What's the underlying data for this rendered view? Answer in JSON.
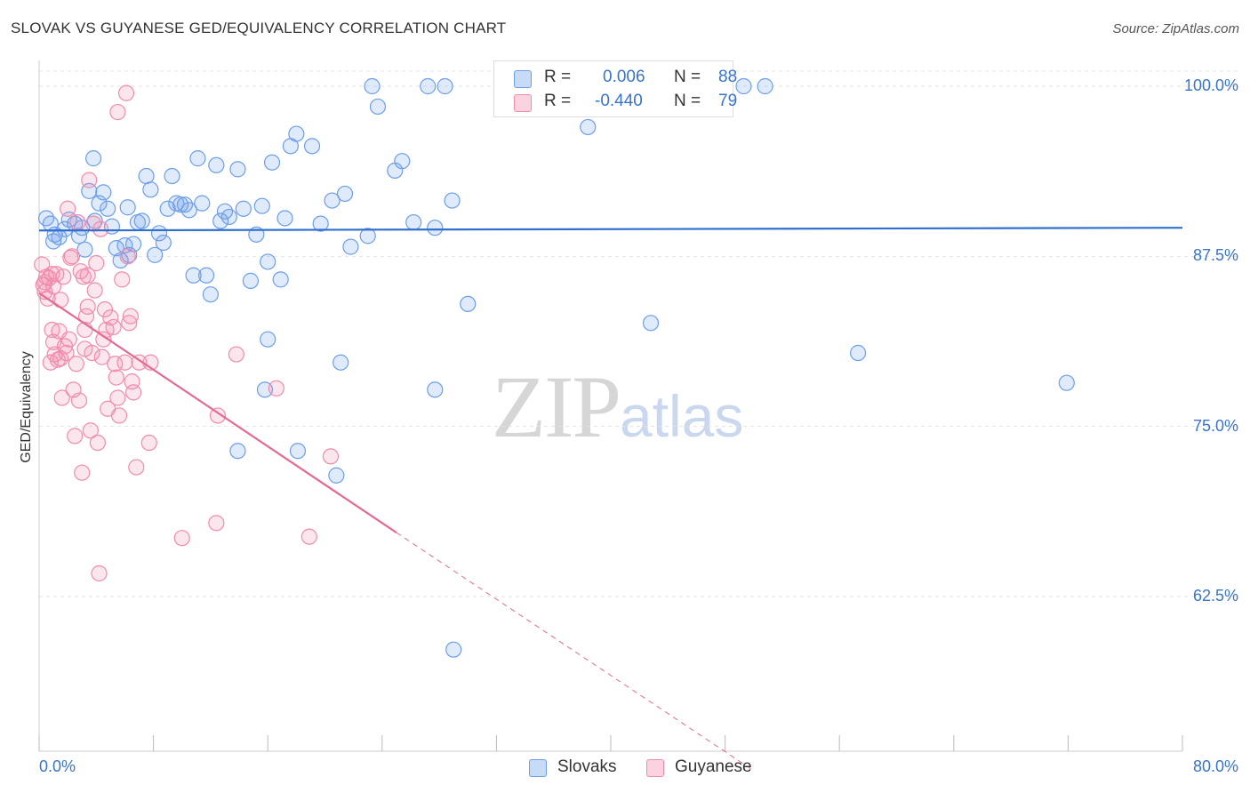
{
  "header": {
    "title": "SLOVAK VS GUYANESE GED/EQUIVALENCY CORRELATION CHART",
    "source": "Source: ZipAtlas.com"
  },
  "watermark": {
    "zip": "ZIP",
    "atlas": "atlas"
  },
  "legend": {
    "rows": [
      {
        "r_label": "R =",
        "r_value": "0.006",
        "n_label": "N =",
        "n_value": "88",
        "color": "#6d9ee8"
      },
      {
        "r_label": "R =",
        "r_value": "-0.440",
        "n_label": "N =",
        "n_value": "79",
        "color": "#f08cab"
      }
    ]
  },
  "bottom_legend": [
    {
      "label": "Slovaks",
      "color": "#6d9ee8"
    },
    {
      "label": "Guyanese",
      "color": "#f08cab"
    }
  ],
  "chart_data": {
    "type": "scatter",
    "title": "SLOVAK VS GUYANESE GED/EQUIVALENCY CORRELATION CHART",
    "xlabel": "",
    "ylabel": "GED/Equivalency",
    "xlim": [
      0,
      80
    ],
    "ylim": [
      50,
      102
    ],
    "x_ticks_labels": [
      "0.0%",
      "80.0%"
    ],
    "y_ticks": [
      62.5,
      75.0,
      87.5,
      100.0
    ],
    "y_ticks_labels": [
      "62.5%",
      "75.0%",
      "87.5%",
      "100.0%"
    ],
    "grid": true,
    "legend_position": "top-center",
    "series": [
      {
        "name": "Slovaks",
        "color": "#6d9ee8",
        "r": 0.006,
        "n": 88,
        "trend": {
          "x": [
            0,
            80
          ],
          "y": [
            89.4,
            89.6
          ],
          "dashed_from": null
        },
        "points": [
          [
            0.5,
            90.3
          ],
          [
            0.8,
            89.9
          ],
          [
            1.1,
            89.1
          ],
          [
            1.4,
            88.9
          ],
          [
            1.8,
            89.5
          ],
          [
            2.1,
            90.2
          ],
          [
            2.5,
            89.9
          ],
          [
            2.8,
            89.0
          ],
          [
            3.0,
            89.6
          ],
          [
            3.2,
            88.0
          ],
          [
            3.5,
            92.3
          ],
          [
            3.9,
            90.1
          ],
          [
            4.2,
            91.4
          ],
          [
            4.5,
            92.2
          ],
          [
            4.8,
            91.0
          ],
          [
            5.1,
            89.7
          ],
          [
            5.4,
            88.1
          ],
          [
            5.7,
            87.2
          ],
          [
            6.0,
            88.3
          ],
          [
            6.3,
            87.6
          ],
          [
            6.6,
            88.4
          ],
          [
            6.9,
            90.0
          ],
          [
            7.2,
            90.1
          ],
          [
            7.5,
            93.4
          ],
          [
            7.8,
            92.4
          ],
          [
            8.1,
            87.6
          ],
          [
            8.4,
            89.2
          ],
          [
            8.7,
            88.5
          ],
          [
            9.0,
            91.0
          ],
          [
            9.3,
            93.4
          ],
          [
            9.6,
            91.4
          ],
          [
            9.9,
            91.3
          ],
          [
            10.2,
            91.3
          ],
          [
            10.5,
            90.9
          ],
          [
            10.8,
            86.1
          ],
          [
            11.1,
            94.7
          ],
          [
            11.4,
            91.4
          ],
          [
            11.7,
            86.1
          ],
          [
            12.0,
            84.7
          ],
          [
            12.4,
            94.2
          ],
          [
            12.7,
            90.1
          ],
          [
            13.0,
            90.8
          ],
          [
            13.3,
            90.4
          ],
          [
            13.9,
            93.9
          ],
          [
            14.3,
            91.0
          ],
          [
            14.8,
            85.7
          ],
          [
            15.2,
            89.1
          ],
          [
            15.6,
            91.2
          ],
          [
            16.0,
            87.1
          ],
          [
            16.3,
            94.4
          ],
          [
            16.9,
            85.8
          ],
          [
            17.2,
            90.3
          ],
          [
            17.6,
            95.6
          ],
          [
            18.0,
            96.5
          ],
          [
            19.1,
            95.6
          ],
          [
            19.7,
            89.9
          ],
          [
            20.5,
            91.6
          ],
          [
            21.4,
            92.1
          ],
          [
            21.8,
            88.2
          ],
          [
            23.0,
            89.0
          ],
          [
            23.3,
            100.0
          ],
          [
            23.7,
            98.5
          ],
          [
            24.9,
            93.8
          ],
          [
            25.4,
            94.5
          ],
          [
            26.2,
            90.0
          ],
          [
            27.2,
            100.0
          ],
          [
            27.7,
            89.6
          ],
          [
            28.4,
            100.0
          ],
          [
            28.9,
            91.6
          ],
          [
            30.0,
            84.0
          ],
          [
            38.4,
            97.0
          ],
          [
            42.8,
            82.6
          ],
          [
            49.3,
            100.0
          ],
          [
            50.8,
            100.0
          ],
          [
            57.3,
            80.4
          ],
          [
            71.9,
            78.2
          ],
          [
            15.8,
            77.7
          ],
          [
            13.9,
            73.2
          ],
          [
            18.1,
            73.2
          ],
          [
            20.8,
            71.4
          ],
          [
            16.0,
            81.4
          ],
          [
            21.1,
            79.7
          ],
          [
            27.7,
            77.7
          ],
          [
            29.0,
            58.6
          ],
          [
            38.0,
            100.0
          ],
          [
            6.2,
            91.1
          ],
          [
            3.8,
            94.7
          ],
          [
            1.0,
            88.6
          ]
        ]
      },
      {
        "name": "Guyanese",
        "color": "#f08cab",
        "r": -0.44,
        "n": 79,
        "trend": {
          "x": [
            0,
            25.0,
            50.0
          ],
          "y": [
            84.8,
            67.2,
            49.7
          ],
          "dashed_from": 25.0
        },
        "points": [
          [
            0.2,
            86.9
          ],
          [
            0.3,
            85.4
          ],
          [
            0.4,
            84.9
          ],
          [
            0.5,
            86.0
          ],
          [
            0.6,
            84.4
          ],
          [
            0.7,
            85.9
          ],
          [
            0.8,
            79.7
          ],
          [
            0.9,
            82.1
          ],
          [
            1.0,
            81.2
          ],
          [
            1.1,
            80.3
          ],
          [
            1.2,
            86.2
          ],
          [
            1.3,
            79.9
          ],
          [
            1.4,
            82.0
          ],
          [
            1.5,
            80.0
          ],
          [
            1.6,
            77.1
          ],
          [
            1.8,
            80.9
          ],
          [
            1.9,
            80.4
          ],
          [
            2.0,
            91.0
          ],
          [
            2.1,
            81.4
          ],
          [
            2.3,
            87.5
          ],
          [
            2.4,
            77.7
          ],
          [
            2.5,
            74.3
          ],
          [
            2.7,
            90.0
          ],
          [
            2.8,
            76.9
          ],
          [
            3.0,
            71.6
          ],
          [
            3.1,
            86.0
          ],
          [
            3.2,
            82.1
          ],
          [
            3.3,
            83.1
          ],
          [
            3.4,
            83.8
          ],
          [
            3.6,
            74.7
          ],
          [
            3.7,
            80.4
          ],
          [
            3.9,
            85.0
          ],
          [
            4.1,
            73.8
          ],
          [
            4.3,
            89.5
          ],
          [
            4.5,
            81.4
          ],
          [
            4.6,
            83.6
          ],
          [
            4.7,
            82.1
          ],
          [
            4.8,
            76.3
          ],
          [
            5.0,
            83.0
          ],
          [
            5.2,
            82.3
          ],
          [
            5.3,
            79.6
          ],
          [
            5.5,
            77.1
          ],
          [
            5.6,
            75.8
          ],
          [
            5.8,
            85.8
          ],
          [
            6.0,
            79.7
          ],
          [
            6.2,
            87.5
          ],
          [
            6.4,
            83.1
          ],
          [
            6.5,
            78.3
          ],
          [
            6.6,
            77.5
          ],
          [
            6.8,
            72.0
          ],
          [
            7.0,
            79.7
          ],
          [
            7.7,
            73.8
          ],
          [
            7.8,
            79.7
          ],
          [
            10.0,
            66.8
          ],
          [
            12.4,
            67.9
          ],
          [
            12.5,
            75.8
          ],
          [
            13.8,
            80.3
          ],
          [
            16.6,
            77.8
          ],
          [
            18.9,
            66.9
          ],
          [
            20.4,
            72.8
          ],
          [
            6.1,
            99.5
          ],
          [
            5.5,
            98.1
          ],
          [
            4.2,
            64.2
          ],
          [
            3.5,
            93.1
          ],
          [
            3.8,
            89.9
          ],
          [
            2.9,
            86.4
          ],
          [
            0.9,
            86.2
          ],
          [
            1.7,
            86.0
          ],
          [
            2.2,
            87.4
          ],
          [
            3.4,
            86.1
          ],
          [
            4.0,
            87.0
          ],
          [
            5.4,
            78.6
          ],
          [
            6.3,
            82.6
          ],
          [
            1.5,
            84.3
          ],
          [
            2.6,
            79.6
          ],
          [
            3.2,
            80.7
          ],
          [
            0.4,
            85.6
          ],
          [
            1.0,
            85.3
          ],
          [
            4.4,
            80.1
          ]
        ]
      }
    ]
  }
}
